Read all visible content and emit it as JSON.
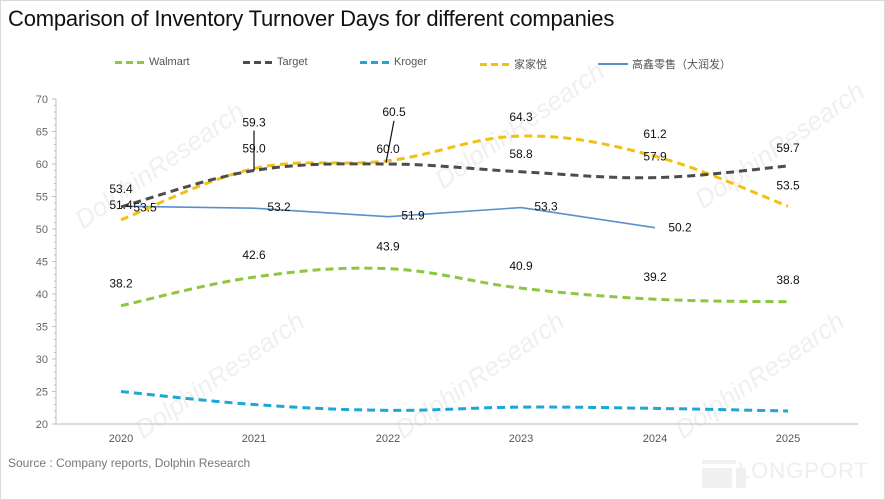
{
  "page": {
    "title": "Comparison of Inventory Turnover Days for different companies",
    "source": "Source : Company reports, Dolphin Research",
    "brand": "LONGPORT",
    "watermark": "DolphinResearch"
  },
  "chart_data": {
    "type": "line",
    "title": "Comparison of Inventory Turnover Days for different companies",
    "xlabel": "",
    "ylabel": "",
    "categories": [
      "2020",
      "2021",
      "2022",
      "2023",
      "2024",
      "2025"
    ],
    "ylim": [
      20,
      70
    ],
    "yticks": [
      20,
      25,
      30,
      35,
      40,
      45,
      50,
      55,
      60,
      65,
      70
    ],
    "grid": false,
    "legend_position": "top-center",
    "series": [
      {
        "name": "Walmart",
        "color": "#8dc63f",
        "style": "dashed",
        "values": [
          38.2,
          42.6,
          43.9,
          40.9,
          39.2,
          38.8
        ],
        "labels": [
          "38.2",
          "42.6",
          "43.9",
          "40.9",
          "39.2",
          "38.8"
        ]
      },
      {
        "name": "Target",
        "color": "#4d4d4d",
        "style": "dashed",
        "values": [
          53.4,
          59.0,
          60.0,
          58.8,
          57.9,
          59.7
        ],
        "labels": [
          "53.4",
          "59.0",
          "60.0",
          "58.8",
          "57.9",
          "59.7"
        ]
      },
      {
        "name": "Kroger",
        "color": "#1ba8d6",
        "style": "dashed",
        "values": [
          25.0,
          23.0,
          22.1,
          22.6,
          22.4,
          22.0
        ],
        "labels": []
      },
      {
        "name": "家家悦",
        "color": "#f2c011",
        "style": "dashed",
        "values": [
          51.4,
          59.3,
          60.5,
          64.3,
          61.2,
          53.5
        ],
        "labels": [
          "51.4",
          "59.3",
          "60.5",
          "64.3",
          "61.2",
          "53.5"
        ]
      },
      {
        "name": "高鑫零售（大润发）",
        "color": "#5b8fc9",
        "style": "solid",
        "values": [
          53.5,
          53.2,
          51.9,
          53.3,
          50.2,
          null
        ],
        "labels": [
          "53.5",
          "53.2",
          "51.9",
          "53.3",
          "50.2"
        ]
      }
    ]
  }
}
